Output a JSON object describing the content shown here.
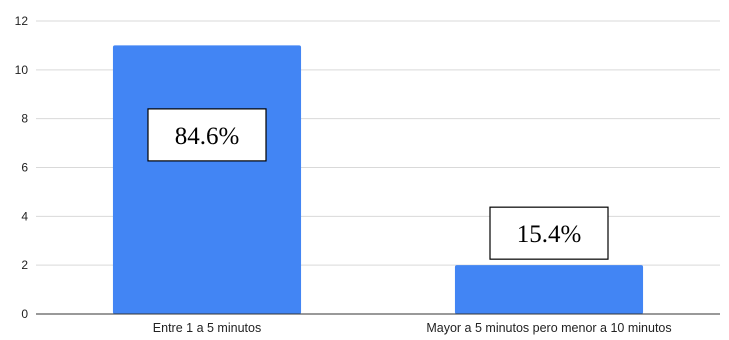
{
  "chart_data": {
    "type": "bar",
    "categories": [
      "Entre 1 a 5 minutos",
      "Mayor a 5 minutos  pero menor a 10 minutos"
    ],
    "values": [
      11,
      2
    ],
    "ylim": [
      0,
      12
    ],
    "yticks": [
      0,
      2,
      4,
      6,
      8,
      10,
      12
    ],
    "grid": true,
    "bar_color": "#4285f4",
    "annotations": [
      "84.6%",
      "15.4%"
    ]
  }
}
